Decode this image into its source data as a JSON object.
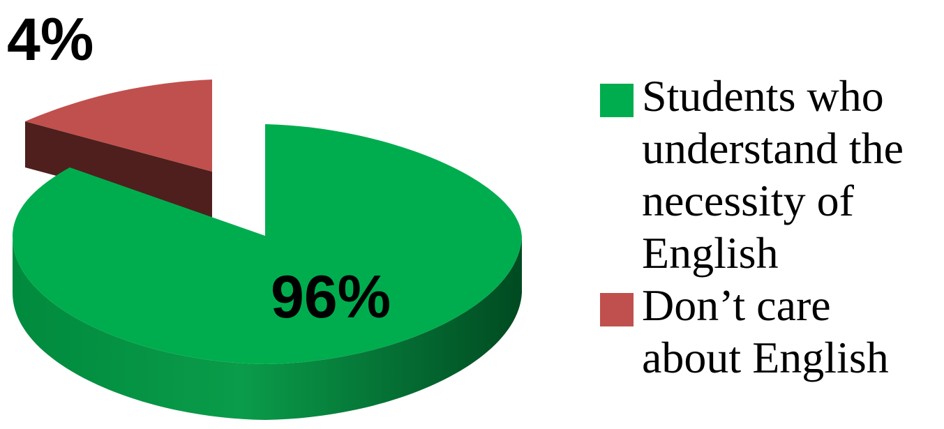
{
  "chart_data": {
    "type": "pie",
    "style": "3d-exploded",
    "title": "",
    "legend_position": "right",
    "slices": [
      {
        "label": "Students  who understand the necessity of English",
        "value": 96,
        "display": "96%",
        "color": "#00AD4E",
        "side_color": "#005C29"
      },
      {
        "label": "Don’t care about English",
        "value": 4,
        "display": "4%",
        "color": "#C0504D",
        "side_color": "#4E1F1D"
      }
    ]
  }
}
